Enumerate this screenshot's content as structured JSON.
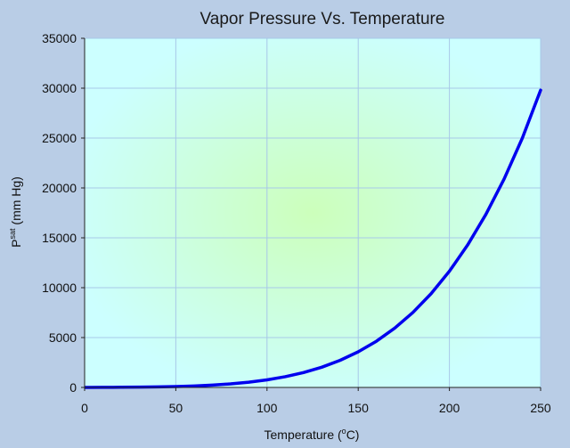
{
  "chart_data": {
    "type": "line",
    "title": "Vapor Pressure Vs. Temperature",
    "xlabel_main": "Temperature (",
    "xlabel_sup": "o",
    "xlabel_end": "C)",
    "ylabel_main": "P",
    "ylabel_sup": "sat",
    "ylabel_end": " (mm Hg)",
    "xlim": [
      0,
      250
    ],
    "ylim": [
      0,
      35000
    ],
    "xticks": [
      0,
      50,
      100,
      150,
      200,
      250
    ],
    "yticks": [
      0,
      5000,
      10000,
      15000,
      20000,
      25000,
      30000,
      35000
    ],
    "grid": true,
    "series": [
      {
        "name": "Psat",
        "color": "#0000ee",
        "x": [
          0,
          10,
          20,
          30,
          40,
          50,
          60,
          70,
          80,
          90,
          100,
          110,
          120,
          130,
          140,
          150,
          160,
          170,
          180,
          190,
          200,
          210,
          220,
          230,
          240,
          250
        ],
        "y": [
          4.6,
          9.2,
          17.5,
          31.8,
          55.3,
          92.5,
          149.4,
          233.7,
          355.1,
          525.8,
          760,
          1074.6,
          1489.1,
          2026.2,
          2710.9,
          3570.5,
          4636,
          5940,
          7520,
          9409,
          11650,
          14280,
          17350,
          20900,
          25000,
          29800
        ]
      }
    ],
    "colors": {
      "plot_center": "#ccffbb",
      "plot_edge": "#ccffff",
      "grid": "#a8c8e8",
      "axis": "#222222",
      "background": "#b9cde6"
    }
  }
}
